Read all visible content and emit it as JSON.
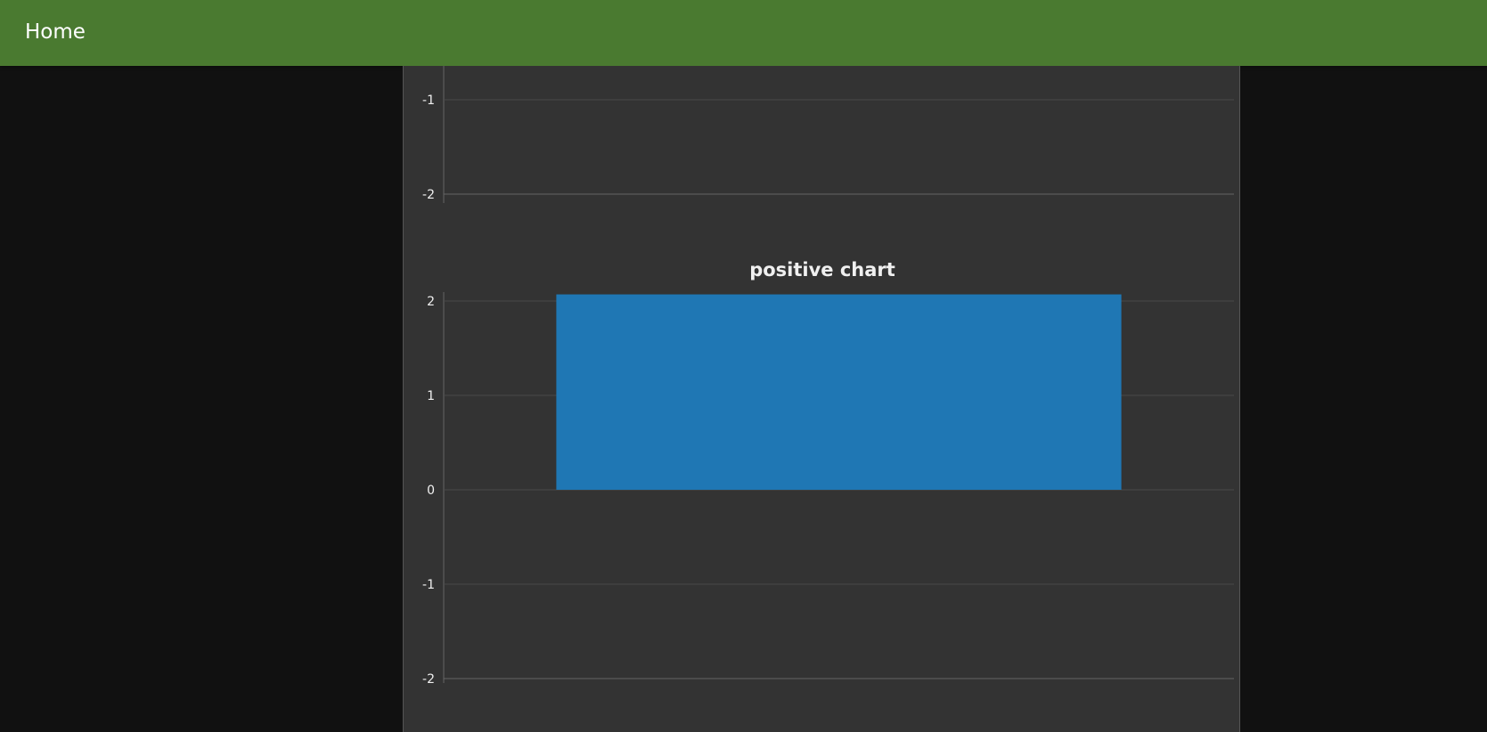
{
  "header": {
    "title": "Home"
  },
  "colors": {
    "header_bg": "#4a7a30",
    "page_bg": "#111111",
    "panel_bg": "#333333",
    "bar": "#1f77b4"
  },
  "chart_data": [
    {
      "type": "bar",
      "title": "",
      "categories": [],
      "values": [],
      "yticks": [
        -1,
        -2
      ],
      "partially_visible": true
    },
    {
      "type": "bar",
      "title": "positive chart",
      "categories": [
        ""
      ],
      "values": [
        2.07
      ],
      "yticks": [
        2,
        1,
        0,
        -1,
        -2
      ],
      "ylim": [
        -2,
        2
      ],
      "xlabel": "",
      "ylabel": ""
    }
  ]
}
